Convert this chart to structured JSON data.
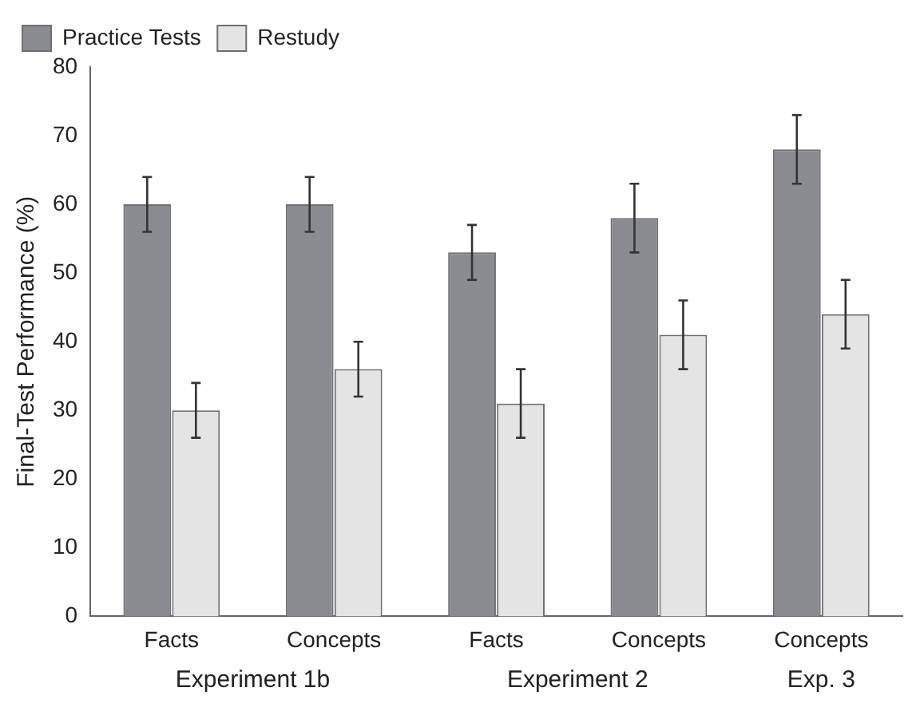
{
  "chart_data": {
    "type": "bar",
    "ylabel": "Final-Test Performance (%)",
    "categories": [
      "Facts",
      "Concepts",
      "Facts",
      "Concepts",
      "Concepts"
    ],
    "series": [
      {
        "name": "Practice Tests",
        "color": "#8a8b90",
        "values": [
          60,
          60,
          53,
          58,
          68
        ],
        "errors": [
          4,
          4,
          4,
          5,
          5
        ]
      },
      {
        "name": "Restudy",
        "color": "#e3e4e3",
        "values": [
          30,
          36,
          31,
          41,
          44
        ],
        "errors": [
          4,
          4,
          5,
          5,
          5
        ]
      }
    ],
    "ylim": [
      0,
      80
    ],
    "yticks": [
      0,
      10,
      20,
      30,
      40,
      50,
      60,
      70,
      80
    ],
    "grid": false,
    "legend": "top left",
    "annotations": [
      "Experiment 1b",
      "Experiment 2",
      "Exp. 3"
    ]
  }
}
